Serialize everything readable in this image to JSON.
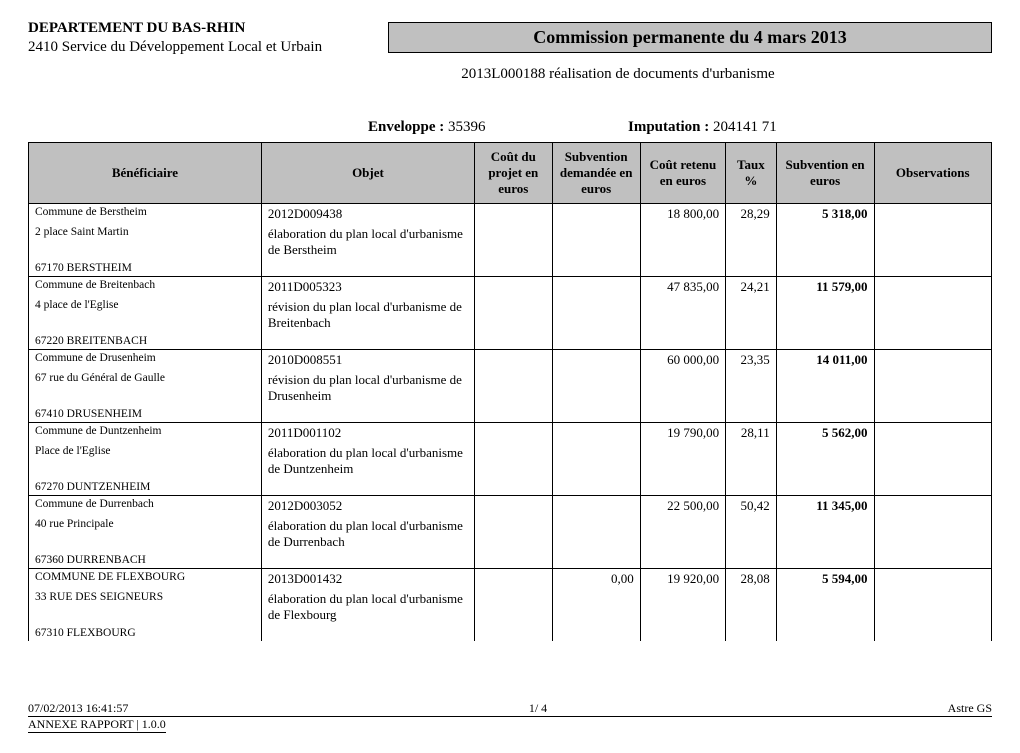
{
  "header": {
    "departement": "DEPARTEMENT DU BAS-RHIN",
    "service": "2410 Service du Développement Local et Urbain",
    "title": "Commission permanente du 4 mars 2013",
    "subtitle": "2013L000188 réalisation de documents d'urbanisme",
    "enveloppe_label": "Enveloppe :",
    "enveloppe_value": "35396",
    "imputation_label": "Imputation :",
    "imputation_value": "204141  71"
  },
  "columns": {
    "beneficiaire": "Bénéficiaire",
    "objet": "Objet",
    "cout": "Coût du projet en euros",
    "subv_dem": "Subvention demandée en euros",
    "cout_retenu": "Coût retenu en euros",
    "taux": "Taux %",
    "subv_eur": "Subvention en euros",
    "obs": "Observations"
  },
  "rows": [
    {
      "benef_name": "Commune de Berstheim",
      "benef_addr": "2 place Saint Martin",
      "benef_city": "67170 BERSTHEIM",
      "objet_code": "2012D009438",
      "objet_desc": "élaboration du plan local d'urbanisme de Berstheim",
      "subv_dem": "",
      "cout_retenu": "18 800,00",
      "taux": "28,29",
      "subv_eur": "5 318,00"
    },
    {
      "benef_name": "Commune de Breitenbach",
      "benef_addr": "4 place de l'Eglise",
      "benef_city": "67220 BREITENBACH",
      "objet_code": "2011D005323",
      "objet_desc": "révision du plan local d'urbanisme de Breitenbach",
      "subv_dem": "",
      "cout_retenu": "47 835,00",
      "taux": "24,21",
      "subv_eur": "11 579,00"
    },
    {
      "benef_name": "Commune de Drusenheim",
      "benef_addr": "67 rue du Général de Gaulle",
      "benef_city": "67410 DRUSENHEIM",
      "objet_code": "2010D008551",
      "objet_desc": "révision du plan local d'urbanisme de Drusenheim",
      "subv_dem": "",
      "cout_retenu": "60 000,00",
      "taux": "23,35",
      "subv_eur": "14 011,00"
    },
    {
      "benef_name": "Commune de Duntzenheim",
      "benef_addr": "Place de l'Eglise",
      "benef_city": "67270 DUNTZENHEIM",
      "objet_code": "2011D001102",
      "objet_desc": "élaboration du plan local d'urbanisme de Duntzenheim",
      "subv_dem": "",
      "cout_retenu": "19 790,00",
      "taux": "28,11",
      "subv_eur": "5 562,00"
    },
    {
      "benef_name": "Commune de Durrenbach",
      "benef_addr": "40 rue Principale",
      "benef_city": "67360 DURRENBACH",
      "objet_code": "2012D003052",
      "objet_desc": "élaboration du plan local d'urbanisme de Durrenbach",
      "subv_dem": "",
      "cout_retenu": "22 500,00",
      "taux": "50,42",
      "subv_eur": "11 345,00"
    },
    {
      "benef_name": "COMMUNE DE FLEXBOURG",
      "benef_addr": "33 RUE DES SEIGNEURS",
      "benef_city": "67310 FLEXBOURG",
      "objet_code": "2013D001432",
      "objet_desc": "élaboration du plan local d'urbanisme de Flexbourg",
      "subv_dem": "0,00",
      "cout_retenu": "19 920,00",
      "taux": "28,08",
      "subv_eur": "5 594,00"
    }
  ],
  "footer": {
    "timestamp": "07/02/2013 16:41:57",
    "page": "1/  4",
    "app": "Astre GS",
    "annex": "ANNEXE RAPPORT  | 1.0.0"
  }
}
